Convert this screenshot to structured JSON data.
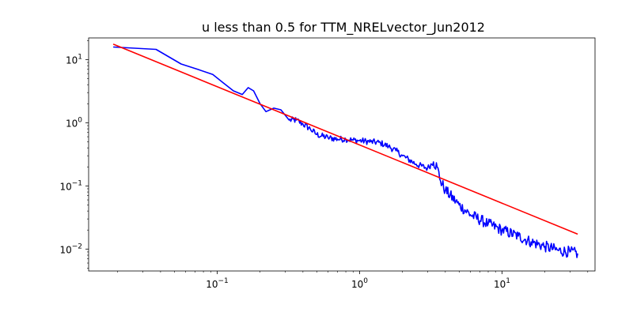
{
  "chart_data": {
    "type": "line",
    "title": "u less than 0.5  for TTM_NRELvector_Jun2012",
    "xlabel": "",
    "ylabel": "",
    "xscale": "log",
    "yscale": "log",
    "xlim": [
      0.0125,
      45
    ],
    "ylim": [
      0.0045,
      22
    ],
    "grid": false,
    "x_ticks": [
      {
        "value": 0.1,
        "base": "10",
        "exp": "−1"
      },
      {
        "value": 1,
        "base": "10",
        "exp": "0"
      },
      {
        "value": 10,
        "base": "10",
        "exp": "1"
      }
    ],
    "y_ticks": [
      {
        "value": 0.01,
        "base": "10",
        "exp": "−2"
      },
      {
        "value": 0.1,
        "base": "10",
        "exp": "−1"
      },
      {
        "value": 1,
        "base": "10",
        "exp": "0"
      },
      {
        "value": 10,
        "base": "10",
        "exp": "1"
      }
    ],
    "series": [
      {
        "color": "#0000ff",
        "noise": true,
        "x": [
          0.0186,
          0.0372,
          0.0558,
          0.0744,
          0.093,
          0.11,
          0.13,
          0.15,
          0.165,
          0.18,
          0.2,
          0.22,
          0.25,
          0.28,
          0.32,
          0.36,
          0.4,
          0.45,
          0.5,
          0.6,
          0.7,
          0.8,
          0.9,
          1.0,
          1.2,
          1.4,
          1.6,
          1.8,
          2.0,
          2.5,
          3.0,
          3.3,
          3.5,
          3.7,
          4.0,
          5.0,
          6.0,
          8.0,
          10.0,
          13.0,
          16.0,
          20.0,
          25.0,
          30.0,
          34.0
        ],
        "y": [
          15.8,
          14.5,
          8.5,
          6.9,
          5.8,
          4.3,
          3.2,
          2.8,
          3.6,
          3.2,
          2.0,
          1.5,
          1.7,
          1.6,
          1.1,
          1.1,
          0.95,
          0.8,
          0.65,
          0.58,
          0.55,
          0.55,
          0.53,
          0.52,
          0.5,
          0.48,
          0.42,
          0.36,
          0.3,
          0.22,
          0.19,
          0.24,
          0.2,
          0.12,
          0.085,
          0.05,
          0.035,
          0.025,
          0.02,
          0.016,
          0.013,
          0.011,
          0.0095,
          0.009,
          0.0085
        ]
      },
      {
        "color": "#ff0000",
        "noise": false,
        "x": [
          0.0186,
          34.0
        ],
        "y": [
          17.5,
          0.0172
        ]
      }
    ]
  }
}
